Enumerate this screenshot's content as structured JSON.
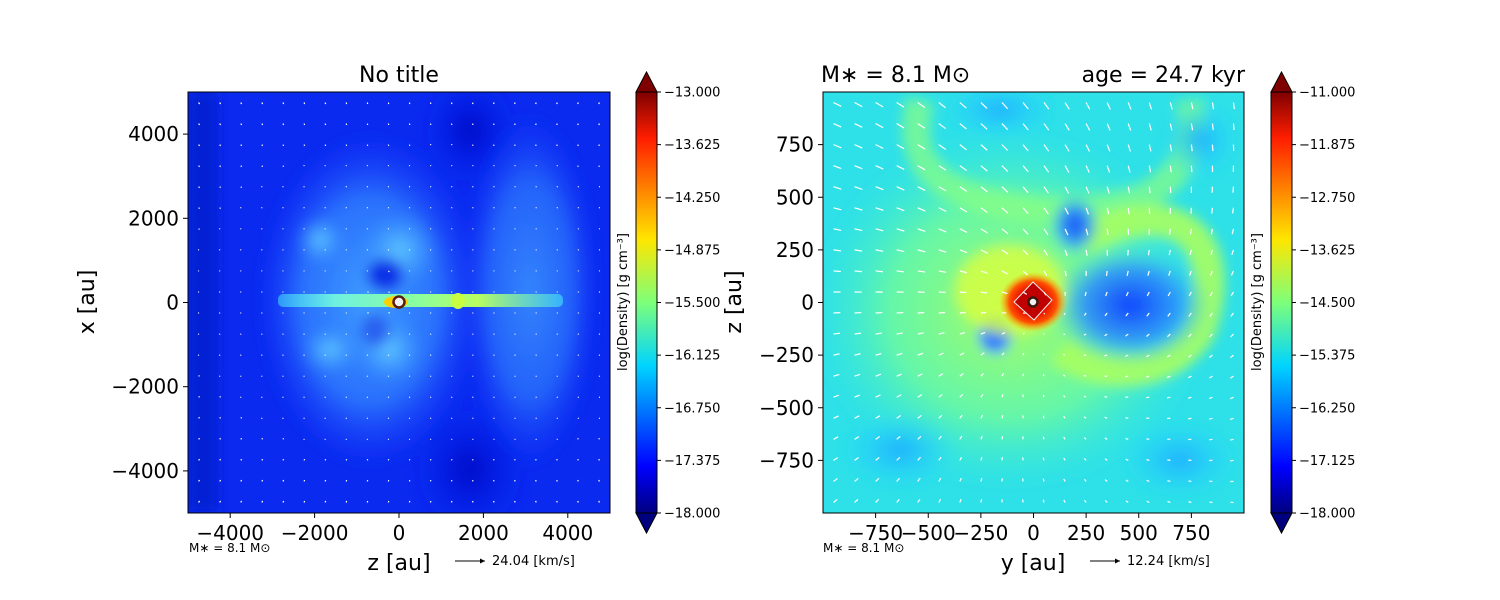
{
  "chart_data": [
    {
      "type": "heatmap",
      "title": "No title",
      "xlabel": "z [au]",
      "ylabel": "x [au]",
      "xlim": [
        -5000,
        5000
      ],
      "ylim": [
        -5000,
        5000
      ],
      "xticks": [
        -4000,
        -2000,
        0,
        2000,
        4000
      ],
      "yticks": [
        -4000,
        -2000,
        0,
        2000,
        4000
      ],
      "xtick_labels": [
        "−4000",
        "−2000",
        "0",
        "2000",
        "4000"
      ],
      "ytick_labels": [
        "−4000",
        "−2000",
        "0",
        "2000",
        "4000"
      ],
      "colorbar": {
        "label": "log(Density) [g cm⁻³]",
        "min": -18.0,
        "max": -13.0,
        "ticks": [
          -13.0,
          -13.625,
          -14.25,
          -14.875,
          -15.5,
          -16.125,
          -16.75,
          -17.375,
          -18.0
        ],
        "tick_labels": [
          "−13.000",
          "−13.625",
          "−14.250",
          "−14.875",
          "−15.500",
          "−16.125",
          "−16.750",
          "−17.375",
          "−18.000"
        ],
        "extend": "both",
        "colormap": "jet"
      },
      "annotation_mass": "M∗ = 8.1 M⊙",
      "quiver_key": "24.04 [km/s]",
      "grid": false
    },
    {
      "type": "heatmap",
      "title_left": "M∗ = 8.1 M⊙",
      "title_right": "age = 24.7 kyr",
      "xlabel": "y [au]",
      "ylabel": "z [au]",
      "xlim": [
        -1000,
        1000
      ],
      "ylim": [
        -1000,
        1000
      ],
      "xticks": [
        -750,
        -500,
        -250,
        0,
        250,
        500,
        750
      ],
      "yticks": [
        -750,
        -500,
        -250,
        0,
        250,
        500,
        750
      ],
      "xtick_labels": [
        "−750",
        "−500",
        "−250",
        "0",
        "250",
        "500",
        "750"
      ],
      "ytick_labels": [
        "−750",
        "−500",
        "−250",
        "0",
        "250",
        "500",
        "750"
      ],
      "colorbar": {
        "label": "log(Density) [g cm⁻³]",
        "min": -18.0,
        "max": -11.0,
        "ticks": [
          -11.0,
          -11.875,
          -12.75,
          -13.625,
          -14.5,
          -15.375,
          -16.25,
          -17.125,
          -18.0
        ],
        "tick_labels": [
          "−11.000",
          "−11.875",
          "−12.750",
          "−13.625",
          "−14.500",
          "−15.375",
          "−16.250",
          "−17.125",
          "−18.000"
        ],
        "extend": "both",
        "colormap": "jet"
      },
      "annotation_mass": "M∗ = 8.1 M⊙",
      "quiver_key": "12.24 [km/s]",
      "grid": false
    }
  ]
}
